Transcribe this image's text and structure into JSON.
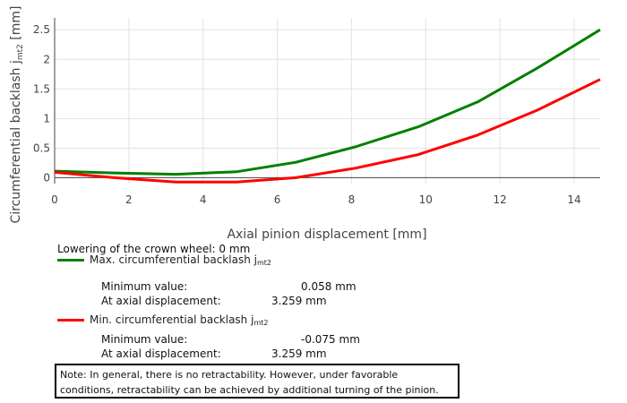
{
  "chart_data": {
    "type": "line",
    "xlabel": "Axial pinion displacement [mm]",
    "ylabel_main": "Circumferential backlash j",
    "ylabel_sub": "mt2",
    "ylabel_unit": " [mm]",
    "xlim": [
      0,
      14.7
    ],
    "ylim": [
      -0.1,
      2.7
    ],
    "x_ticks": [
      0,
      2,
      4,
      6,
      8,
      10,
      12,
      14
    ],
    "y_ticks": [
      0,
      0.5,
      1,
      1.5,
      2,
      2.5
    ],
    "y_tick_labels": [
      "0",
      "0.5",
      "1",
      "1.5",
      "2",
      "2.5"
    ],
    "grid": true,
    "series": [
      {
        "name": "Max. circumferential backlash j",
        "color": "#008000",
        "x": [
          0,
          1.6,
          3.26,
          4.9,
          6.5,
          8.1,
          9.8,
          11.4,
          13.0,
          14.7
        ],
        "y": [
          0.11,
          0.08,
          0.058,
          0.1,
          0.26,
          0.52,
          0.86,
          1.28,
          1.85,
          2.5
        ]
      },
      {
        "name": "Min. circumferential backlash j",
        "color": "#ff0000",
        "x": [
          0,
          1.6,
          3.26,
          4.9,
          6.5,
          8.1,
          9.8,
          11.4,
          13.0,
          14.7
        ],
        "y": [
          0.09,
          0.0,
          -0.075,
          -0.075,
          0.0,
          0.16,
          0.39,
          0.72,
          1.14,
          1.66
        ]
      }
    ]
  },
  "info": {
    "lowering": "Lowering of the crown wheel: 0 mm",
    "max_legend": "Max. circumferential backlash j",
    "min_legend": "Min. circumferential backlash j",
    "legend_sub": "mt2",
    "min_value_label": "Minimum value:",
    "at_axial_label": "At axial displacement:",
    "max_min_value": "0.058 mm",
    "max_at_axial": "3.259 mm",
    "min_min_value": "-0.075 mm",
    "min_at_axial": "3.259 mm"
  },
  "note": "Note: In general, there is no retractability. However, under favorable conditions, retractability can be achieved by additional turning of the pinion."
}
